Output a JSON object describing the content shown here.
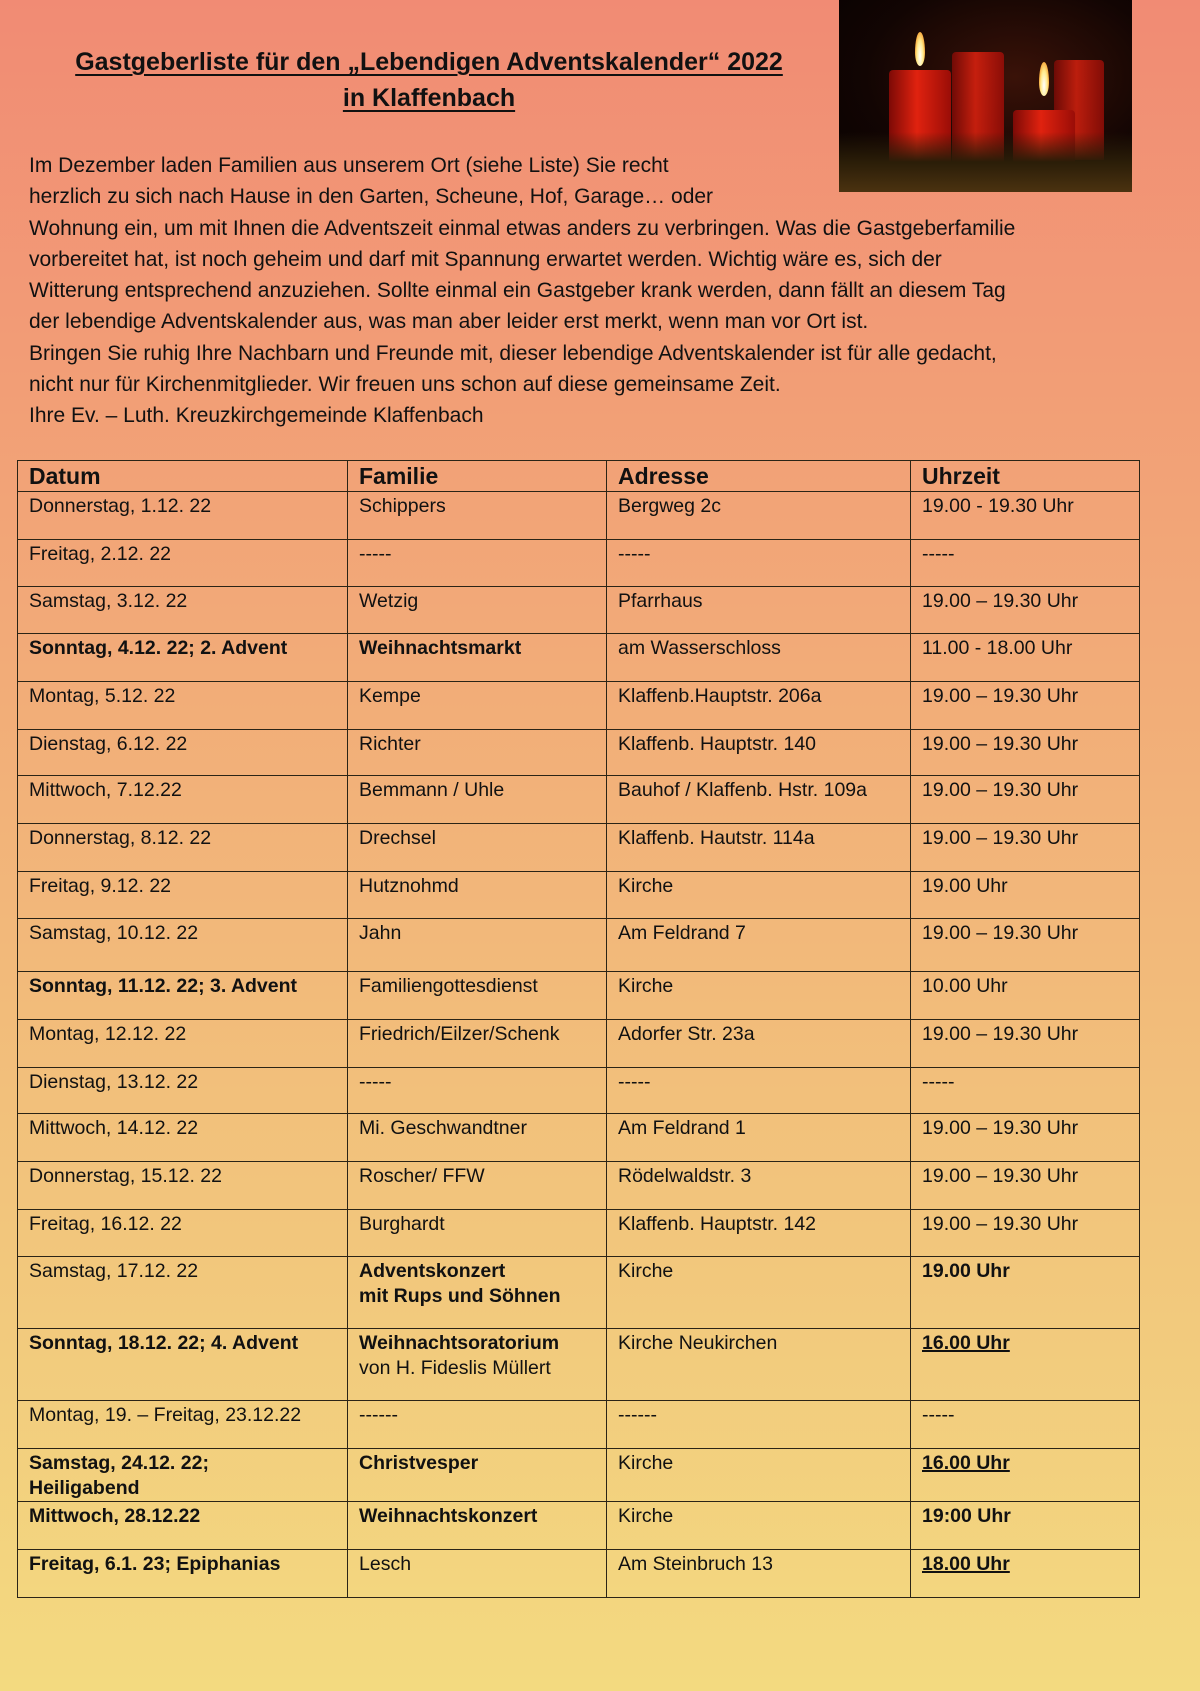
{
  "title": {
    "line1": "Gastgeberliste für den „Lebendigen Adventskalender“ 2022",
    "line2": "in Klaffenbach"
  },
  "photo": {
    "description_icon": "advent-candles-photo"
  },
  "intro": [
    "Im Dezember laden Familien aus unserem Ort (siehe Liste) Sie recht",
    "herzlich zu sich nach Hause in den Garten, Scheune, Hof, Garage… oder",
    "Wohnung ein, um mit Ihnen die Adventszeit einmal etwas anders zu verbringen. Was die Gastgeberfamilie",
    "vorbereitet hat, ist noch geheim und darf mit Spannung erwartet werden. Wichtig wäre es, sich der",
    "Witterung entsprechend anzuziehen. Sollte einmal ein Gastgeber krank werden, dann fällt an diesem Tag",
    "der lebendige Adventskalender aus, was man aber leider erst merkt, wenn man vor Ort ist.",
    "Bringen Sie ruhig Ihre Nachbarn und Freunde mit, dieser lebendige Adventskalender ist für alle gedacht,",
    "nicht nur für Kirchenmitglieder. Wir freuen uns schon auf diese gemeinsame Zeit.",
    "Ihre Ev. – Luth. Kreuzkirchgemeinde Klaffenbach"
  ],
  "table": {
    "headers": [
      "Datum",
      "Familie",
      "Adresse",
      "Uhrzeit"
    ],
    "rows": [
      {
        "date": "Donnerstag, 1.12. 22",
        "family": "Schippers",
        "address": "Bergweg 2c",
        "time": "19.00 - 19.30 Uhr"
      },
      {
        "date": "Freitag, 2.12. 22",
        "family": "-----",
        "address": "-----",
        "time": "-----"
      },
      {
        "date": "Samstag, 3.12. 22",
        "family": "Wetzig",
        "address": "Pfarrhaus",
        "time": "19.00 – 19.30 Uhr"
      },
      {
        "date": "Sonntag, 4.12. 22;  2. Advent",
        "family": "Weihnachtsmarkt",
        "address": "am Wasserschloss",
        "time": "11.00 - 18.00 Uhr",
        "date_bold": true,
        "family_bold": true
      },
      {
        "date": "Montag, 5.12. 22",
        "family": "Kempe",
        "address": "Klaffenb.Hauptstr. 206a",
        "time": "19.00 – 19.30 Uhr"
      },
      {
        "date": "Dienstag, 6.12. 22",
        "family": "Richter",
        "address": "Klaffenb. Hauptstr. 140",
        "time": "19.00 – 19.30 Uhr"
      },
      {
        "date": "Mittwoch, 7.12.22",
        "family": "Bemmann / Uhle",
        "address": "Bauhof / Klaffenb. Hstr. 109a",
        "time": "19.00 – 19.30 Uhr"
      },
      {
        "date": "Donnerstag, 8.12. 22",
        "family": "Drechsel",
        "address": "Klaffenb. Hautstr. 114a",
        "time": "19.00 – 19.30 Uhr"
      },
      {
        "date": "Freitag, 9.12. 22",
        "family": "Hutznohmd",
        "address": "Kirche",
        "time": "19.00 Uhr"
      },
      {
        "date": "Samstag, 10.12. 22",
        "family": "Jahn",
        "address": "Am Feldrand 7",
        "time": "19.00 – 19.30 Uhr"
      },
      {
        "date": "Sonntag, 11.12. 22;  3. Advent",
        "family": "Familiengottesdienst",
        "address": "Kirche",
        "time": "10.00 Uhr",
        "date_bold": true
      },
      {
        "date": "Montag, 12.12. 22",
        "family": "Friedrich/Eilzer/Schenk",
        "address": "Adorfer Str. 23a",
        "time": "19.00 – 19.30 Uhr"
      },
      {
        "date": "Dienstag, 13.12. 22",
        "family": "-----",
        "address": "-----",
        "time": "-----"
      },
      {
        "date": "Mittwoch, 14.12. 22",
        "family": "Mi. Geschwandtner",
        "address": "Am Feldrand 1",
        "time": "19.00 – 19.30 Uhr"
      },
      {
        "date": "Donnerstag, 15.12. 22",
        "family": "Roscher/ FFW",
        "address": "Rödelwaldstr. 3",
        "time": "19.00 – 19.30 Uhr"
      },
      {
        "date": "Freitag, 16.12. 22",
        "family": "Burghardt",
        "address": "Klaffenb. Hauptstr. 142",
        "time": "19.00 – 19.30 Uhr"
      },
      {
        "date": "Samstag, 17.12. 22",
        "family": "Adventskonzert",
        "family_line2": "mit Rups und Söhnen",
        "family_line2_bold": true,
        "address": "Kirche",
        "time": "19.00 Uhr",
        "family_bold": true,
        "time_bold": true
      },
      {
        "date": "Sonntag, 18.12. 22;  4. Advent",
        "family": "Weihnachtsoratorium",
        "family_line2": "von H. Fideslis Müllert",
        "address": "Kirche Neukirchen",
        "time": "16.00 Uhr",
        "date_bold": true,
        "family_bold": true,
        "time_bold": true,
        "time_underline": true
      },
      {
        "date": "Montag, 19. – Freitag, 23.12.22",
        "family": "------",
        "address": "------",
        "time": "-----"
      },
      {
        "date": "Samstag, 24.12. 22;",
        "date_line2": "Heiligabend",
        "family": "Christvesper",
        "address": "Kirche",
        "time": "16.00 Uhr",
        "date_bold": true,
        "family_bold": true,
        "time_bold": true,
        "time_underline": true
      },
      {
        "date": "Mittwoch, 28.12.22",
        "family": "Weihnachtskonzert",
        "address": "Kirche",
        "time": "19:00 Uhr",
        "date_bold": true,
        "family_bold": true,
        "time_bold": true
      },
      {
        "date": "Freitag, 6.1. 23;   Epiphanias",
        "family": "Lesch",
        "address": "Am Steinbruch 13",
        "time": "18.00 Uhr",
        "date_bold": true,
        "time_bold": true,
        "time_underline": true
      }
    ]
  }
}
